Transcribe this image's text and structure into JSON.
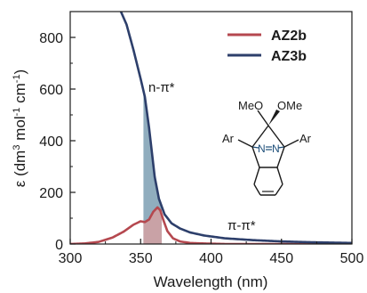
{
  "chart_data": {
    "type": "line",
    "xlabel": "Wavelength (nm)",
    "ylabel_parts": [
      "ε (dm",
      "3",
      " mol",
      "-1",
      " cm",
      "-1",
      ")"
    ],
    "xlim": [
      300,
      500
    ],
    "ylim": [
      0,
      900
    ],
    "xticks": [
      "300",
      "350",
      "400",
      "450",
      "500"
    ],
    "xtick_values": [
      300,
      350,
      400,
      450,
      500
    ],
    "yticks": [
      "0",
      "200",
      "400",
      "600",
      "800"
    ],
    "ytick_values": [
      0,
      200,
      400,
      600,
      800
    ],
    "legend_position": "top-right",
    "series": [
      {
        "name": "AZ2b",
        "color": "#b5484f",
        "x": [
          300,
          310,
          320,
          330,
          338,
          345,
          350,
          353,
          356,
          359,
          362,
          364,
          366,
          369,
          373,
          378,
          385,
          395,
          410,
          500
        ],
        "y": [
          0,
          2,
          8,
          25,
          48,
          75,
          88,
          85,
          95,
          125,
          142,
          130,
          95,
          50,
          22,
          10,
          4,
          2,
          0,
          0
        ]
      },
      {
        "name": "AZ3b",
        "color": "#2d3f6b",
        "x": [
          336,
          340,
          345,
          350,
          353,
          356,
          360,
          363,
          367,
          372,
          378,
          385,
          395,
          410,
          430,
          450,
          470,
          490,
          500
        ],
        "y": [
          900,
          850,
          750,
          640,
          570,
          450,
          260,
          175,
          115,
          80,
          60,
          45,
          33,
          22,
          15,
          10,
          7,
          5,
          4
        ]
      }
    ],
    "shaded_regions": [
      {
        "series": "AZ3b",
        "x_from": 352,
        "x_to": 365,
        "color": "#7c9fb3",
        "label": "n-π*"
      },
      {
        "series": "AZ2b",
        "x_from": 352,
        "x_to": 365,
        "color": "#d4a0a2",
        "label": "π-π*"
      }
    ],
    "annotations": {
      "n_pi": "n-π*",
      "pi_pi": "π-π*"
    },
    "molecule": {
      "meo": "MeO",
      "ome": "OMe",
      "ar_left": "Ar",
      "ar_right": "Ar",
      "n_left": "N",
      "n_right": "N"
    }
  }
}
